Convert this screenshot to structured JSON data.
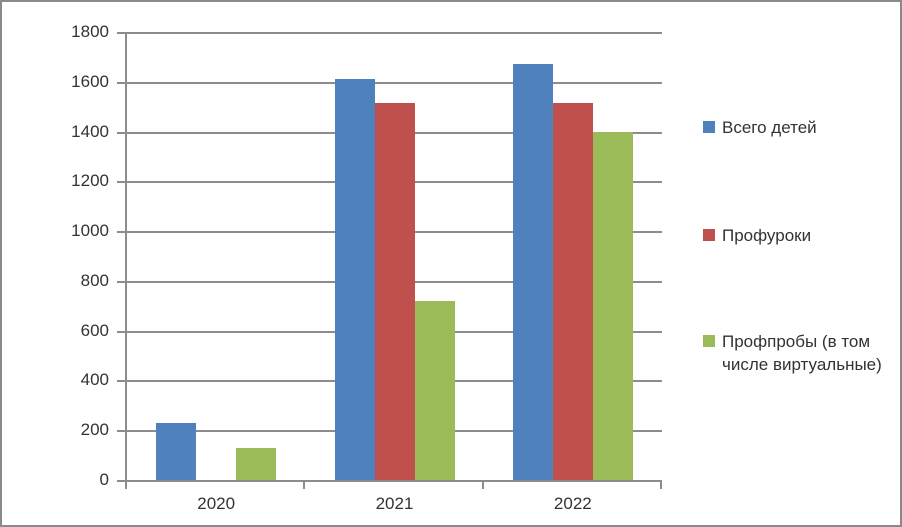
{
  "chart_data": {
    "type": "bar",
    "title": "",
    "xlabel": "",
    "ylabel": "",
    "categories": [
      "2020",
      "2021",
      "2022"
    ],
    "series": [
      {
        "name": "Всего детей",
        "color": "#4F81BD",
        "values": [
          228,
          1610,
          1670
        ]
      },
      {
        "name": "Профуроки",
        "color": "#C0504D",
        "values": [
          0,
          1515,
          1515
        ]
      },
      {
        "name": "Профпробы (в том числе виртуальные)",
        "color": "#9BBB59",
        "values": [
          130,
          720,
          1400
        ]
      }
    ],
    "ylim": [
      0,
      1800
    ],
    "ytick_step": 200,
    "yticks": [
      0,
      200,
      400,
      600,
      800,
      1000,
      1200,
      1400,
      1600,
      1800
    ],
    "grid": true,
    "legend_position": "right"
  },
  "colors": {
    "axis": "#8c8c8c",
    "gridline": "#8c8c8c",
    "frame_border": "#8a8a8a",
    "text": "#333333"
  }
}
